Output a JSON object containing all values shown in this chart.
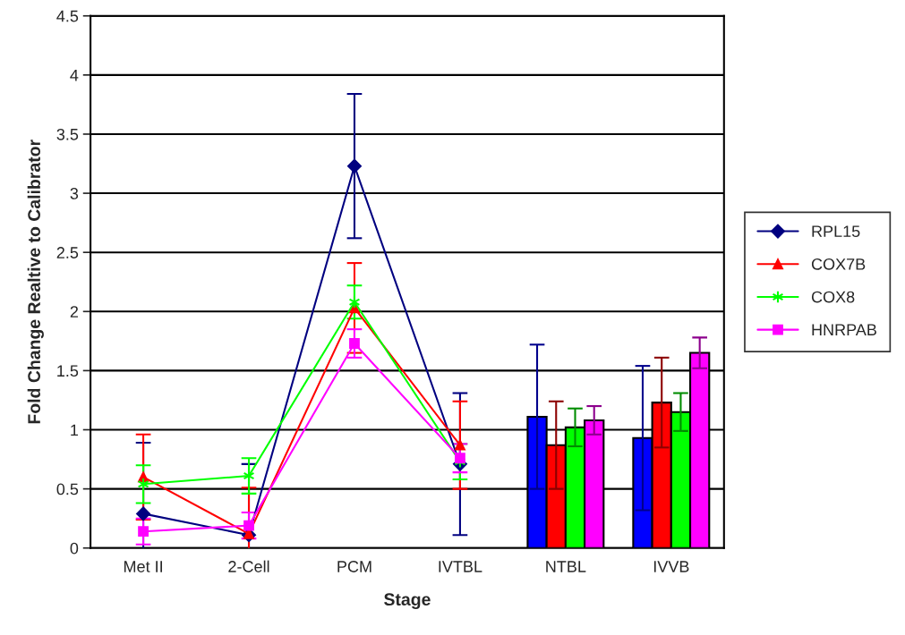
{
  "chart_data": {
    "type": "line",
    "xlabel": "Stage",
    "ylabel": "Fold Change Realtive to Calibrator",
    "categories": [
      "Met II",
      "2-Cell",
      "PCM",
      "IVTBL",
      "NTBL",
      "IVVB"
    ],
    "ylim": [
      0,
      4.5
    ],
    "yticks": [
      0,
      0.5,
      1,
      1.5,
      2,
      2.5,
      3,
      3.5,
      4,
      4.5
    ],
    "grid": "y",
    "legend": "right",
    "series": [
      {
        "name": "RPL15",
        "marker": "diamond",
        "color": "#000080",
        "values": [
          0.29,
          0.11,
          3.23,
          0.71,
          null,
          null
        ],
        "errors": [
          0.6,
          0.6,
          0.61,
          0.6,
          null,
          null
        ]
      },
      {
        "name": "COX7B",
        "marker": "triangle",
        "color": "#ff0000",
        "values": [
          0.6,
          0.12,
          2.03,
          0.87,
          null,
          null
        ],
        "errors": [
          0.36,
          0.39,
          0.38,
          0.37,
          null,
          null
        ]
      },
      {
        "name": "COX8",
        "marker": "cross",
        "color": "#00ff00",
        "values": [
          0.54,
          0.61,
          2.08,
          0.73,
          null,
          null
        ],
        "errors": [
          0.16,
          0.15,
          0.14,
          0.15,
          null,
          null
        ]
      },
      {
        "name": "HNRPAB",
        "marker": "square",
        "color": "#ff00ff",
        "values": [
          0.14,
          0.19,
          1.73,
          0.76,
          null,
          null
        ],
        "errors": [
          0.11,
          0.11,
          0.12,
          0.12,
          null,
          null
        ]
      },
      {
        "type": "bar",
        "color": "#0000ff",
        "values": [
          null,
          null,
          null,
          null,
          1.11,
          0.93
        ],
        "errors": [
          null,
          null,
          null,
          null,
          0.61,
          0.61
        ]
      },
      {
        "type": "bar",
        "color": "#ff0000",
        "values": [
          null,
          null,
          null,
          null,
          0.87,
          1.23
        ],
        "errors": [
          null,
          null,
          null,
          null,
          0.37,
          0.38
        ]
      },
      {
        "type": "bar",
        "color": "#00ff00",
        "values": [
          null,
          null,
          null,
          null,
          1.02,
          1.15
        ],
        "errors": [
          null,
          null,
          null,
          null,
          0.16,
          0.16
        ]
      },
      {
        "type": "bar",
        "color": "#ff00ff",
        "values": [
          null,
          null,
          null,
          null,
          1.08,
          1.65
        ],
        "errors": [
          null,
          null,
          null,
          null,
          0.12,
          0.13
        ]
      }
    ]
  }
}
